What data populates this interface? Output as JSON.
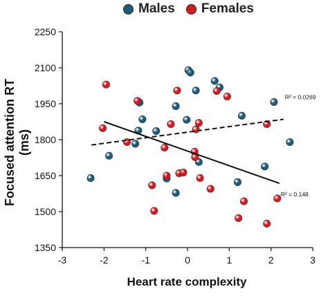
{
  "chart_data": {
    "type": "scatter",
    "title": "",
    "xlabel": "Heart rate complexity",
    "ylabel": "Focused attention RT (ms)",
    "xlim": [
      -3,
      3
    ],
    "ylim": [
      1350,
      2250
    ],
    "xticks": [
      "-3",
      "-2",
      "-1",
      "0",
      "1",
      "2",
      "3"
    ],
    "yticks": [
      "1350",
      "1500",
      "1650",
      "1800",
      "1950",
      "2100",
      "2250"
    ],
    "legend_position": "top",
    "series": [
      {
        "name": "Males",
        "color": "#1f5a78",
        "points": [
          {
            "x": -2.32,
            "y": 1640
          },
          {
            "x": -1.88,
            "y": 1733
          },
          {
            "x": -1.25,
            "y": 1783
          },
          {
            "x": -1.18,
            "y": 1838
          },
          {
            "x": -1.08,
            "y": 1885
          },
          {
            "x": -1.15,
            "y": 1955
          },
          {
            "x": -0.75,
            "y": 1836
          },
          {
            "x": -0.5,
            "y": 1638
          },
          {
            "x": -0.28,
            "y": 1578
          },
          {
            "x": -0.28,
            "y": 1940
          },
          {
            "x": -0.02,
            "y": 1883
          },
          {
            "x": 0.02,
            "y": 2090
          },
          {
            "x": 0.07,
            "y": 2080
          },
          {
            "x": 0.2,
            "y": 2005
          },
          {
            "x": 0.27,
            "y": 1707
          },
          {
            "x": 0.65,
            "y": 2045
          },
          {
            "x": 0.77,
            "y": 2018
          },
          {
            "x": 1.2,
            "y": 1623
          },
          {
            "x": 1.3,
            "y": 1900
          },
          {
            "x": 1.85,
            "y": 1688
          },
          {
            "x": 2.07,
            "y": 1957
          },
          {
            "x": 2.45,
            "y": 1790
          }
        ]
      },
      {
        "name": "Females",
        "color": "#d11c22",
        "points": [
          {
            "x": -1.95,
            "y": 2030
          },
          {
            "x": -2.03,
            "y": 1848
          },
          {
            "x": -1.45,
            "y": 1790
          },
          {
            "x": -1.2,
            "y": 1962
          },
          {
            "x": -0.85,
            "y": 1610
          },
          {
            "x": -0.8,
            "y": 1503
          },
          {
            "x": -0.55,
            "y": 1767
          },
          {
            "x": -0.5,
            "y": 1650
          },
          {
            "x": -0.4,
            "y": 1865
          },
          {
            "x": -0.25,
            "y": 2005
          },
          {
            "x": -0.2,
            "y": 1660
          },
          {
            "x": -0.1,
            "y": 1663
          },
          {
            "x": 0.17,
            "y": 1750
          },
          {
            "x": 0.18,
            "y": 1727
          },
          {
            "x": 0.2,
            "y": 1843
          },
          {
            "x": 0.27,
            "y": 1870
          },
          {
            "x": 0.3,
            "y": 1640
          },
          {
            "x": 0.55,
            "y": 1595
          },
          {
            "x": 0.7,
            "y": 2003
          },
          {
            "x": 0.95,
            "y": 1980
          },
          {
            "x": 1.22,
            "y": 1473
          },
          {
            "x": 1.35,
            "y": 1543
          },
          {
            "x": 1.9,
            "y": 1865
          },
          {
            "x": 1.9,
            "y": 1450
          },
          {
            "x": 2.15,
            "y": 1555
          }
        ]
      }
    ],
    "fit_lines": [
      {
        "style": "dashed",
        "x": [
          -2.3,
          2.3
        ],
        "y": [
          1778,
          1885
        ],
        "label": "R² = 0.0269"
      },
      {
        "style": "solid",
        "x": [
          -2.0,
          2.2
        ],
        "y": [
          1875,
          1618
        ],
        "label": "R² = 0.148"
      }
    ]
  }
}
